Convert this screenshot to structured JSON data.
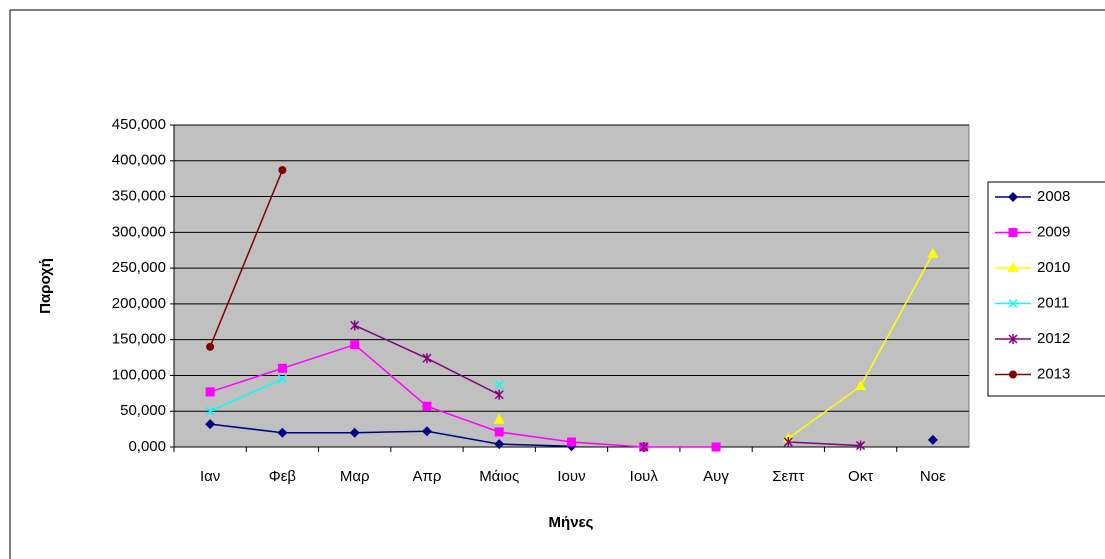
{
  "chart_data": {
    "type": "line",
    "x_label": "Μήνες",
    "y_label": "Παροχή",
    "categories": [
      "Ιαν",
      "Φεβ",
      "Μαρ",
      "Απρ",
      "Μάιος",
      "Ιουν",
      "Ιουλ",
      "Αυγ",
      "Σεπτ",
      "Οκτ",
      "Νοε"
    ],
    "series": [
      {
        "name": "2008",
        "color": "#000080",
        "marker": "diamond",
        "values": [
          32,
          20,
          20,
          22,
          4,
          1,
          null,
          null,
          null,
          null,
          10
        ]
      },
      {
        "name": "2009",
        "color": "#ff00ff",
        "marker": "square",
        "values": [
          77,
          110,
          143,
          57,
          21,
          7,
          0,
          0,
          null,
          null,
          null
        ]
      },
      {
        "name": "2010",
        "color": "#ffff00",
        "marker": "triangle",
        "values": [
          null,
          null,
          null,
          null,
          38,
          null,
          null,
          null,
          12,
          85,
          270
        ]
      },
      {
        "name": "2011",
        "color": "#00ffff",
        "marker": "x",
        "values": [
          50,
          95,
          null,
          null,
          87,
          null,
          null,
          null,
          null,
          null,
          null
        ]
      },
      {
        "name": "2012",
        "color": "#800080",
        "marker": "star",
        "values": [
          null,
          null,
          170,
          124,
          73,
          null,
          0,
          null,
          7,
          2,
          null
        ]
      },
      {
        "name": "2013",
        "color": "#800000",
        "marker": "circle",
        "values": [
          140,
          387,
          null,
          null,
          null,
          null,
          null,
          null,
          null,
          null,
          null
        ]
      }
    ],
    "ylim": [
      0,
      450
    ],
    "yticks": [
      {
        "value": 0,
        "label": "0,000"
      },
      {
        "value": 50,
        "label": "50,000"
      },
      {
        "value": 100,
        "label": "100,000"
      },
      {
        "value": 150,
        "label": "150,000"
      },
      {
        "value": 200,
        "label": "200,000"
      },
      {
        "value": 250,
        "label": "250,000"
      },
      {
        "value": 300,
        "label": "300,000"
      },
      {
        "value": 350,
        "label": "350,000"
      },
      {
        "value": 400,
        "label": "400,000"
      },
      {
        "value": 450,
        "label": "450,000"
      }
    ],
    "grid": true,
    "legend": "right"
  }
}
